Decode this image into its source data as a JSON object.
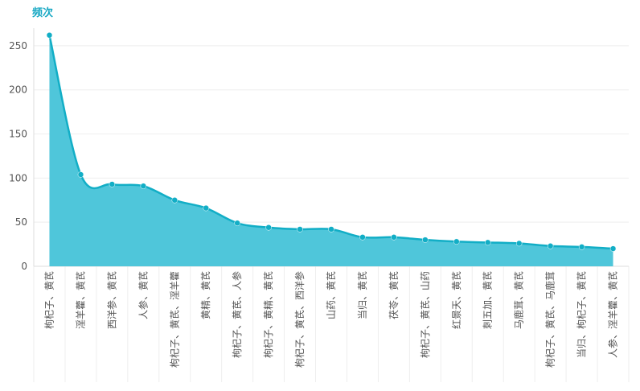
{
  "chart_data": {
    "type": "area",
    "title": "频次",
    "ylim": [
      0,
      270
    ],
    "yticks": [
      0,
      50,
      100,
      150,
      200,
      250
    ],
    "categories": [
      "枸杞子、黄芪",
      "淫羊藿、黄芪",
      "西洋参、黄芪",
      "人参、黄芪",
      "枸杞子、黄芪、淫羊藿",
      "黄精、黄芪",
      "枸杞子、黄芪、人参",
      "枸杞子、黄精、黄芪",
      "枸杞子、黄芪、西洋参",
      "山药、黄芪",
      "当归、黄芪",
      "茯苓、黄芪",
      "枸杞子、黄芪、山药",
      "红景天、黄芪",
      "刺五加、黄芪",
      "马鹿茸、黄芪",
      "枸杞子、黄芪、马鹿茸",
      "当归、枸杞子、黄芪",
      "人参、淫羊藿、黄芪"
    ],
    "values": [
      262,
      104,
      93,
      91,
      75,
      66,
      49,
      44,
      42,
      42,
      33,
      33,
      30,
      28,
      27,
      26,
      23,
      22,
      20
    ],
    "colors": {
      "line": "#12aec6",
      "fill": "#4fc6da",
      "point": "#12aec6"
    },
    "grid": true
  }
}
